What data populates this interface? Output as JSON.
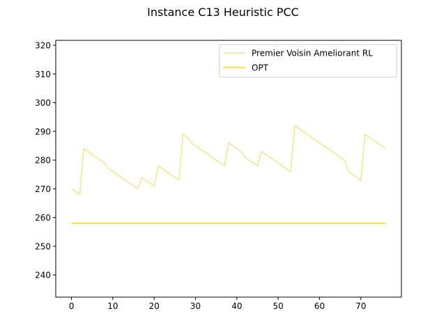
{
  "chart_data": {
    "type": "line",
    "title": "Instance C13 Heuristic PCC",
    "xlabel": "",
    "ylabel": "",
    "xlim": [
      -3.8,
      79.8
    ],
    "ylim": [
      232.3,
      321.7
    ],
    "xticks": [
      0,
      10,
      20,
      30,
      40,
      50,
      60,
      70
    ],
    "yticks": [
      240,
      250,
      260,
      270,
      280,
      290,
      300,
      310,
      320
    ],
    "grid": false,
    "legend_position": "upper right",
    "series": [
      {
        "name": "Premier Voisin Ameliorant RL",
        "color": "#f0e68c",
        "x": [
          0,
          2,
          3,
          8,
          9,
          16,
          17,
          20,
          21,
          26,
          27,
          28,
          29,
          37,
          38,
          41,
          42,
          45,
          46,
          53,
          54,
          66,
          67,
          70,
          71,
          76
        ],
        "y": [
          270,
          268,
          284,
          279,
          277,
          270,
          274,
          271,
          278,
          273,
          289,
          288,
          286,
          278,
          286,
          283,
          281,
          278,
          283,
          276,
          292,
          280,
          276,
          273,
          289,
          284
        ]
      },
      {
        "name": "OPT",
        "color": "#ffd700",
        "x": [
          0,
          76
        ],
        "y": [
          258,
          258
        ]
      }
    ]
  }
}
